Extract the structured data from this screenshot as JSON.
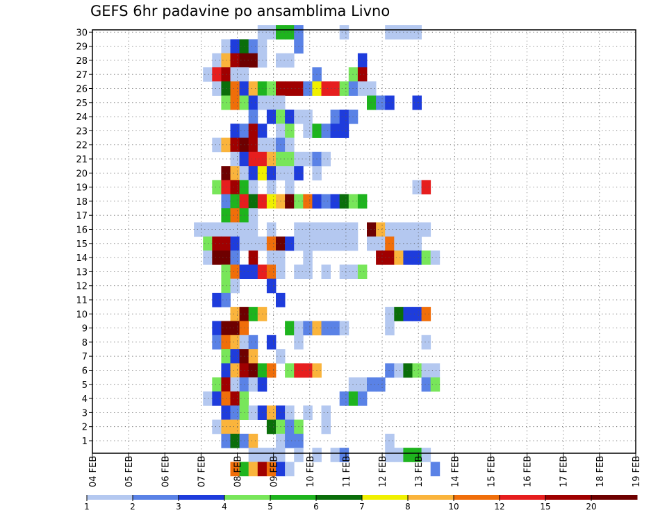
{
  "title": "GEFS 6hr padavine po ansamblima Livno",
  "chart_data": {
    "type": "heatmap",
    "title": "GEFS 6hr padavine po ansamblima Livno",
    "x_ticks": [
      "04 FEB",
      "05 FEB",
      "06 FEB",
      "07 FEB",
      "08 FEB",
      "09 FEB",
      "10 FEB",
      "11 FEB",
      "12 FEB",
      "13 FEB",
      "14 FEB",
      "15 FEB",
      "16 FEB",
      "17 FEB",
      "18 FEB",
      "19 FEB"
    ],
    "y_ticks": [
      "1",
      "2",
      "3",
      "4",
      "5",
      "6",
      "7",
      "8",
      "9",
      "10",
      "11",
      "12",
      "13",
      "14",
      "15",
      "16",
      "17",
      "18",
      "19",
      "20",
      "21",
      "22",
      "23",
      "24",
      "25",
      "26",
      "27",
      "28",
      "29",
      "30"
    ],
    "xlim": [
      0,
      60
    ],
    "ylim": [
      0,
      31
    ],
    "grid": true,
    "legend": {
      "placement": "bottom",
      "labels": [
        "1",
        "2",
        "3",
        "4",
        "5",
        "6",
        "7",
        "8",
        "10",
        "12",
        "15",
        "20"
      ],
      "colors": [
        "#b4c8f0",
        "#5a82e6",
        "#1e3cdc",
        "#78e65a",
        "#1eb41e",
        "#0a6e0a",
        "#f0f000",
        "#fab43c",
        "#f06e0a",
        "#e61e1e",
        "#a00000",
        "#6e0000"
      ]
    },
    "cells": [
      [
        18,
        30,
        1
      ],
      [
        19,
        30,
        1
      ],
      [
        20,
        30,
        5
      ],
      [
        21,
        30,
        5
      ],
      [
        22,
        30,
        2
      ],
      [
        27,
        30,
        1
      ],
      [
        32,
        30,
        1
      ],
      [
        33,
        30,
        1
      ],
      [
        34,
        30,
        1
      ],
      [
        35,
        30,
        1
      ],
      [
        14,
        29,
        1
      ],
      [
        15,
        29,
        3
      ],
      [
        16,
        29,
        6
      ],
      [
        17,
        29,
        2
      ],
      [
        18,
        29,
        1
      ],
      [
        22,
        29,
        2
      ],
      [
        13,
        28,
        1
      ],
      [
        14,
        28,
        8
      ],
      [
        15,
        28,
        15
      ],
      [
        16,
        28,
        20
      ],
      [
        17,
        28,
        20
      ],
      [
        18,
        28,
        1
      ],
      [
        20,
        28,
        1
      ],
      [
        21,
        28,
        1
      ],
      [
        29,
        28,
        3
      ],
      [
        12,
        27,
        1
      ],
      [
        13,
        27,
        12
      ],
      [
        14,
        27,
        15
      ],
      [
        15,
        27,
        1
      ],
      [
        16,
        27,
        1
      ],
      [
        24,
        27,
        2
      ],
      [
        28,
        27,
        4
      ],
      [
        29,
        27,
        15
      ],
      [
        13,
        26,
        1
      ],
      [
        14,
        26,
        6
      ],
      [
        15,
        26,
        10
      ],
      [
        16,
        26,
        3
      ],
      [
        17,
        26,
        8
      ],
      [
        18,
        26,
        5
      ],
      [
        19,
        26,
        4
      ],
      [
        20,
        26,
        15
      ],
      [
        21,
        26,
        15
      ],
      [
        22,
        26,
        15
      ],
      [
        23,
        26,
        2
      ],
      [
        24,
        26,
        7
      ],
      [
        25,
        26,
        12
      ],
      [
        26,
        26,
        12
      ],
      [
        27,
        26,
        4
      ],
      [
        28,
        26,
        2
      ],
      [
        29,
        26,
        1
      ],
      [
        30,
        26,
        1
      ],
      [
        14,
        25,
        4
      ],
      [
        15,
        25,
        10
      ],
      [
        16,
        25,
        4
      ],
      [
        17,
        25,
        3
      ],
      [
        18,
        25,
        1
      ],
      [
        19,
        25,
        1
      ],
      [
        20,
        25,
        1
      ],
      [
        30,
        25,
        5
      ],
      [
        31,
        25,
        2
      ],
      [
        32,
        25,
        3
      ],
      [
        35,
        25,
        3
      ],
      [
        17,
        24,
        2
      ],
      [
        19,
        24,
        3
      ],
      [
        20,
        24,
        4
      ],
      [
        21,
        24,
        3
      ],
      [
        22,
        24,
        1
      ],
      [
        23,
        24,
        1
      ],
      [
        26,
        24,
        2
      ],
      [
        27,
        24,
        3
      ],
      [
        28,
        24,
        2
      ],
      [
        15,
        23,
        3
      ],
      [
        16,
        23,
        2
      ],
      [
        17,
        23,
        15
      ],
      [
        18,
        23,
        3
      ],
      [
        20,
        23,
        1
      ],
      [
        21,
        23,
        4
      ],
      [
        23,
        23,
        1
      ],
      [
        24,
        23,
        5
      ],
      [
        25,
        23,
        2
      ],
      [
        26,
        23,
        3
      ],
      [
        27,
        23,
        3
      ],
      [
        13,
        22,
        1
      ],
      [
        14,
        22,
        8
      ],
      [
        15,
        22,
        15
      ],
      [
        16,
        22,
        20
      ],
      [
        17,
        22,
        15
      ],
      [
        18,
        22,
        1
      ],
      [
        19,
        22,
        1
      ],
      [
        20,
        22,
        2
      ],
      [
        21,
        22,
        1
      ],
      [
        15,
        21,
        1
      ],
      [
        16,
        21,
        3
      ],
      [
        17,
        21,
        12
      ],
      [
        18,
        21,
        12
      ],
      [
        19,
        21,
        8
      ],
      [
        20,
        21,
        4
      ],
      [
        21,
        21,
        4
      ],
      [
        22,
        21,
        1
      ],
      [
        23,
        21,
        1
      ],
      [
        24,
        21,
        2
      ],
      [
        25,
        21,
        1
      ],
      [
        14,
        20,
        20
      ],
      [
        15,
        20,
        8
      ],
      [
        16,
        20,
        1
      ],
      [
        17,
        20,
        3
      ],
      [
        18,
        20,
        7
      ],
      [
        19,
        20,
        3
      ],
      [
        20,
        20,
        1
      ],
      [
        21,
        20,
        1
      ],
      [
        22,
        20,
        3
      ],
      [
        24,
        20,
        1
      ],
      [
        13,
        19,
        4
      ],
      [
        14,
        19,
        12
      ],
      [
        15,
        19,
        15
      ],
      [
        16,
        19,
        5
      ],
      [
        17,
        19,
        1
      ],
      [
        19,
        19,
        1
      ],
      [
        21,
        19,
        1
      ],
      [
        35,
        19,
        1
      ],
      [
        36,
        19,
        12
      ],
      [
        14,
        18,
        2
      ],
      [
        15,
        18,
        5
      ],
      [
        16,
        18,
        12
      ],
      [
        17,
        18,
        6
      ],
      [
        18,
        18,
        12
      ],
      [
        19,
        18,
        7
      ],
      [
        20,
        18,
        8
      ],
      [
        21,
        18,
        20
      ],
      [
        22,
        18,
        4
      ],
      [
        23,
        18,
        10
      ],
      [
        24,
        18,
        3
      ],
      [
        25,
        18,
        2
      ],
      [
        26,
        18,
        3
      ],
      [
        27,
        18,
        6
      ],
      [
        28,
        18,
        4
      ],
      [
        29,
        18,
        5
      ],
      [
        14,
        17,
        5
      ],
      [
        15,
        17,
        10
      ],
      [
        16,
        17,
        5
      ],
      [
        17,
        17,
        1
      ],
      [
        11,
        16,
        1
      ],
      [
        12,
        16,
        1
      ],
      [
        13,
        16,
        1
      ],
      [
        14,
        16,
        1
      ],
      [
        15,
        16,
        1
      ],
      [
        16,
        16,
        1
      ],
      [
        17,
        16,
        1
      ],
      [
        19,
        16,
        1
      ],
      [
        22,
        16,
        1
      ],
      [
        23,
        16,
        1
      ],
      [
        24,
        16,
        1
      ],
      [
        25,
        16,
        1
      ],
      [
        26,
        16,
        1
      ],
      [
        27,
        16,
        1
      ],
      [
        28,
        16,
        1
      ],
      [
        30,
        16,
        20
      ],
      [
        31,
        16,
        8
      ],
      [
        32,
        16,
        1
      ],
      [
        33,
        16,
        1
      ],
      [
        34,
        16,
        1
      ],
      [
        35,
        16,
        1
      ],
      [
        36,
        16,
        1
      ],
      [
        12,
        15,
        4
      ],
      [
        13,
        15,
        15
      ],
      [
        14,
        15,
        15
      ],
      [
        15,
        15,
        3
      ],
      [
        16,
        15,
        1
      ],
      [
        17,
        15,
        1
      ],
      [
        18,
        15,
        1
      ],
      [
        19,
        15,
        10
      ],
      [
        20,
        15,
        20
      ],
      [
        21,
        15,
        3
      ],
      [
        22,
        15,
        1
      ],
      [
        23,
        15,
        1
      ],
      [
        24,
        15,
        1
      ],
      [
        25,
        15,
        1
      ],
      [
        26,
        15,
        1
      ],
      [
        27,
        15,
        1
      ],
      [
        28,
        15,
        1
      ],
      [
        30,
        15,
        1
      ],
      [
        31,
        15,
        1
      ],
      [
        32,
        15,
        10
      ],
      [
        33,
        15,
        1
      ],
      [
        34,
        15,
        1
      ],
      [
        35,
        15,
        1
      ],
      [
        12,
        14,
        1
      ],
      [
        13,
        14,
        20
      ],
      [
        14,
        14,
        20
      ],
      [
        15,
        14,
        2
      ],
      [
        17,
        14,
        15
      ],
      [
        19,
        14,
        1
      ],
      [
        20,
        14,
        1
      ],
      [
        23,
        14,
        1
      ],
      [
        31,
        14,
        15
      ],
      [
        32,
        14,
        15
      ],
      [
        33,
        14,
        8
      ],
      [
        34,
        14,
        3
      ],
      [
        35,
        14,
        3
      ],
      [
        36,
        14,
        4
      ],
      [
        37,
        14,
        1
      ],
      [
        14,
        13,
        4
      ],
      [
        15,
        13,
        10
      ],
      [
        16,
        13,
        3
      ],
      [
        17,
        13,
        3
      ],
      [
        18,
        13,
        12
      ],
      [
        19,
        13,
        10
      ],
      [
        20,
        13,
        1
      ],
      [
        22,
        13,
        1
      ],
      [
        23,
        13,
        1
      ],
      [
        25,
        13,
        1
      ],
      [
        27,
        13,
        1
      ],
      [
        28,
        13,
        1
      ],
      [
        29,
        13,
        4
      ],
      [
        14,
        12,
        4
      ],
      [
        15,
        12,
        1
      ],
      [
        19,
        12,
        3
      ],
      [
        13,
        11,
        3
      ],
      [
        14,
        11,
        2
      ],
      [
        20,
        11,
        3
      ],
      [
        15,
        10,
        8
      ],
      [
        16,
        10,
        20
      ],
      [
        17,
        10,
        5
      ],
      [
        18,
        10,
        8
      ],
      [
        32,
        10,
        1
      ],
      [
        33,
        10,
        6
      ],
      [
        34,
        10,
        3
      ],
      [
        35,
        10,
        3
      ],
      [
        36,
        10,
        10
      ],
      [
        13,
        9,
        3
      ],
      [
        14,
        9,
        20
      ],
      [
        15,
        9,
        20
      ],
      [
        16,
        9,
        10
      ],
      [
        21,
        9,
        5
      ],
      [
        22,
        9,
        1
      ],
      [
        23,
        9,
        2
      ],
      [
        24,
        9,
        8
      ],
      [
        25,
        9,
        2
      ],
      [
        26,
        9,
        2
      ],
      [
        27,
        9,
        1
      ],
      [
        32,
        9,
        1
      ],
      [
        13,
        8,
        2
      ],
      [
        14,
        8,
        10
      ],
      [
        15,
        8,
        8
      ],
      [
        16,
        8,
        1
      ],
      [
        17,
        8,
        2
      ],
      [
        19,
        8,
        3
      ],
      [
        22,
        8,
        1
      ],
      [
        36,
        8,
        1
      ],
      [
        14,
        7,
        4
      ],
      [
        15,
        7,
        3
      ],
      [
        16,
        7,
        20
      ],
      [
        17,
        7,
        8
      ],
      [
        20,
        7,
        1
      ],
      [
        14,
        6,
        3
      ],
      [
        15,
        6,
        8
      ],
      [
        16,
        6,
        15
      ],
      [
        17,
        6,
        20
      ],
      [
        18,
        6,
        5
      ],
      [
        19,
        6,
        10
      ],
      [
        21,
        6,
        4
      ],
      [
        22,
        6,
        12
      ],
      [
        23,
        6,
        12
      ],
      [
        24,
        6,
        8
      ],
      [
        32,
        6,
        2
      ],
      [
        33,
        6,
        1
      ],
      [
        34,
        6,
        6
      ],
      [
        35,
        6,
        4
      ],
      [
        36,
        6,
        1
      ],
      [
        37,
        6,
        1
      ],
      [
        13,
        5,
        4
      ],
      [
        14,
        5,
        15
      ],
      [
        15,
        5,
        1
      ],
      [
        16,
        5,
        2
      ],
      [
        17,
        5,
        1
      ],
      [
        18,
        5,
        3
      ],
      [
        28,
        5,
        1
      ],
      [
        29,
        5,
        1
      ],
      [
        30,
        5,
        2
      ],
      [
        31,
        5,
        2
      ],
      [
        36,
        5,
        2
      ],
      [
        37,
        5,
        4
      ],
      [
        12,
        4,
        1
      ],
      [
        13,
        4,
        3
      ],
      [
        14,
        4,
        10
      ],
      [
        15,
        4,
        15
      ],
      [
        16,
        4,
        4
      ],
      [
        27,
        4,
        2
      ],
      [
        28,
        4,
        5
      ],
      [
        29,
        4,
        2
      ],
      [
        14,
        3,
        3
      ],
      [
        15,
        3,
        2
      ],
      [
        16,
        3,
        4
      ],
      [
        17,
        3,
        1
      ],
      [
        18,
        3,
        3
      ],
      [
        19,
        3,
        8
      ],
      [
        20,
        3,
        3
      ],
      [
        21,
        3,
        1
      ],
      [
        23,
        3,
        1
      ],
      [
        25,
        3,
        1
      ],
      [
        13,
        2,
        1
      ],
      [
        14,
        2,
        8
      ],
      [
        15,
        2,
        8
      ],
      [
        19,
        2,
        6
      ],
      [
        20,
        2,
        4
      ],
      [
        21,
        2,
        2
      ],
      [
        22,
        2,
        4
      ],
      [
        25,
        2,
        1
      ],
      [
        14,
        1,
        2
      ],
      [
        15,
        1,
        6
      ],
      [
        16,
        1,
        2
      ],
      [
        17,
        1,
        8
      ],
      [
        20,
        1,
        1
      ],
      [
        21,
        1,
        2
      ],
      [
        22,
        1,
        2
      ],
      [
        32,
        1,
        1
      ],
      [
        17,
        0,
        1
      ],
      [
        18,
        0,
        1
      ],
      [
        19,
        0,
        1
      ],
      [
        20,
        0,
        1
      ],
      [
        22,
        0,
        1
      ],
      [
        24,
        0,
        1
      ],
      [
        26,
        0,
        1
      ],
      [
        27,
        0,
        2
      ],
      [
        32,
        0,
        1
      ],
      [
        33,
        0,
        1
      ],
      [
        34,
        0,
        5
      ],
      [
        35,
        0,
        5
      ],
      [
        36,
        0,
        1
      ],
      [
        15,
        -1,
        10
      ],
      [
        16,
        -1,
        5
      ],
      [
        17,
        -1,
        8
      ],
      [
        18,
        -1,
        15
      ],
      [
        19,
        -1,
        10
      ],
      [
        20,
        -1,
        3
      ],
      [
        21,
        -1,
        1
      ],
      [
        37,
        -1,
        2
      ]
    ]
  }
}
